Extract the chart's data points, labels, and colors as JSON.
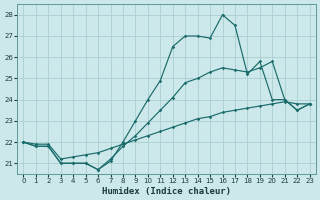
{
  "xlabel": "Humidex (Indice chaleur)",
  "background_color": "#cce8ea",
  "grid_color": "#aacfd2",
  "line_color": "#1a6b6b",
  "hours": [
    0,
    1,
    2,
    3,
    4,
    5,
    6,
    7,
    8,
    9,
    10,
    11,
    12,
    13,
    14,
    15,
    16,
    17,
    18,
    19,
    20,
    21,
    22,
    23
  ],
  "line_main": [
    22.0,
    21.8,
    21.8,
    21.0,
    21.0,
    21.0,
    20.7,
    21.1,
    22.0,
    23.0,
    24.0,
    24.9,
    26.5,
    27.0,
    27.0,
    26.9,
    28.0,
    27.5,
    25.2,
    25.8,
    24.0,
    24.0,
    23.5,
    23.8
  ],
  "line_mid": [
    22.0,
    21.8,
    21.8,
    21.0,
    21.0,
    21.0,
    20.7,
    21.2,
    21.8,
    22.3,
    22.9,
    23.5,
    24.1,
    24.8,
    25.0,
    25.3,
    25.5,
    25.4,
    25.3,
    25.5,
    25.8,
    24.0,
    23.5,
    23.8
  ],
  "line_low": [
    22.0,
    21.9,
    21.9,
    21.2,
    21.3,
    21.4,
    21.5,
    21.7,
    21.9,
    22.1,
    22.3,
    22.5,
    22.7,
    22.9,
    23.1,
    23.2,
    23.4,
    23.5,
    23.6,
    23.7,
    23.8,
    23.9,
    23.8,
    23.8
  ],
  "ylim": [
    20.5,
    28.5
  ],
  "yticks": [
    21,
    22,
    23,
    24,
    25,
    26,
    27,
    28
  ],
  "xlim": [
    -0.5,
    23.5
  ],
  "xticks": [
    0,
    1,
    2,
    3,
    4,
    5,
    6,
    7,
    8,
    9,
    10,
    11,
    12,
    13,
    14,
    15,
    16,
    17,
    18,
    19,
    20,
    21,
    22,
    23
  ],
  "tick_fontsize": 5.0,
  "xlabel_fontsize": 6.5
}
